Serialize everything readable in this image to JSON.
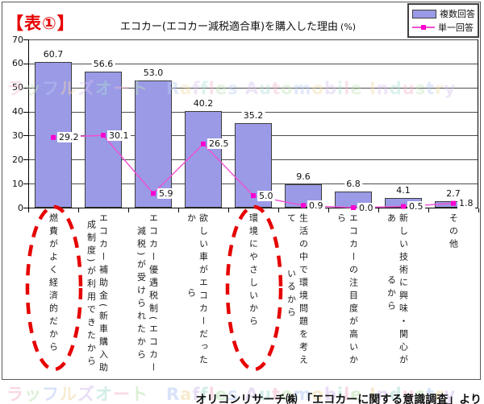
{
  "header": {
    "table_tag": "【表①】",
    "title": "エコカー(エコカー減税適合車)を購入した理由",
    "title_unit": "(%)"
  },
  "legend": [
    {
      "label": "複数回答",
      "type": "bar"
    },
    {
      "label": "単一回答",
      "type": "line"
    }
  ],
  "colors": {
    "bar_fill": "#9a9ae6",
    "bar_border": "#3d3d3d",
    "line": "#f14fd2",
    "marker": "#fb00d0",
    "tag_red": "#e60000",
    "annotation_red": "#e60000",
    "watermark_palette": [
      "#f5b9cd",
      "#bfe4b6",
      "#b9cdf5",
      "#f2dcab",
      "#d8c2f0",
      "#aee0d5"
    ]
  },
  "chart_data": {
    "type": "bar",
    "title": "エコカー(エコカー減税適合車)を購入した理由(%)",
    "xlabel": "",
    "ylabel": "",
    "ylim": [
      0,
      70
    ],
    "yticks": [
      0,
      10,
      20,
      30,
      40,
      50,
      60,
      70
    ],
    "grid": true,
    "legend_position": "top-right",
    "categories": [
      "燃費がよく経済的だから",
      "エコカー補助金(新車購入助成制度)が利用できたから",
      "エコカー優遇税制(エコカー減税)が受けられたから",
      "欲しい車がエコカーだったから",
      "環境にやさしいから",
      "生活の中で環境問題を考えているから",
      "エコカーの注目度が高いから",
      "新しい技術に興味・関心があるから",
      "その他"
    ],
    "category_lines": [
      [
        "燃費がよく経済的だから"
      ],
      [
        "エコカー補助金(新車購入助",
        "成制度)が利用できたから"
      ],
      [
        "エコカー優遇税制(エコカー",
        "減税)が受けられたから"
      ],
      [
        "欲しい車がエコカーだったか",
        "ら"
      ],
      [
        "環境にやさしいから"
      ],
      [
        "生活の中で環境問題を考えて",
        "いるから"
      ],
      [
        "エコカーの注目度が高いから"
      ],
      [
        "新しい技術に興味・関心があ",
        "るから"
      ],
      [
        "その他"
      ]
    ],
    "series": [
      {
        "name": "複数回答",
        "type": "bar",
        "values": [
          60.7,
          56.6,
          53.0,
          40.2,
          35.2,
          9.6,
          6.8,
          4.1,
          2.7
        ]
      },
      {
        "name": "単一回答",
        "type": "line",
        "values": [
          29.2,
          30.1,
          5.9,
          26.5,
          5.0,
          0.9,
          0.0,
          0.5,
          1.8
        ]
      }
    ],
    "annotations": {
      "circled_category_indexes": [
        0,
        4
      ],
      "style": "red-dashed-ellipse"
    }
  },
  "watermark": {
    "jp": "ラッフルズオート",
    "en": "Raffles Automobile Industry"
  },
  "source": "オリコンリサーチ㈱ 「エコカーに関する意識調査」より"
}
